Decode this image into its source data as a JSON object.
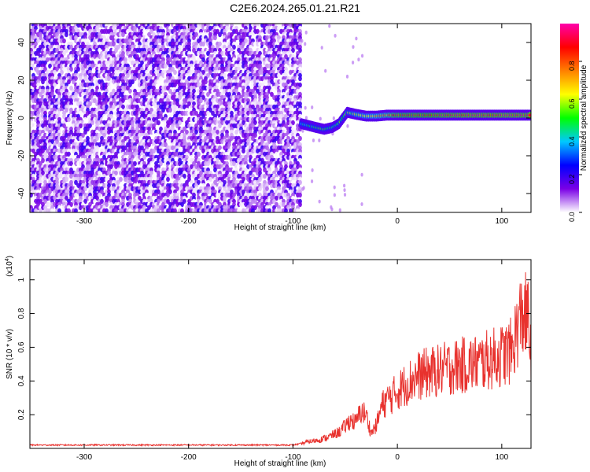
{
  "title": "C2E6.2024.265.01.21.R21",
  "chart_data": [
    {
      "type": "heatmap",
      "xlabel": "Height of straight line (km)",
      "ylabel": "Frequency (Hz)",
      "xlim": [
        -352,
        128
      ],
      "ylim": [
        -50,
        50
      ],
      "xticks": [
        -300,
        -200,
        -100,
        0,
        100
      ],
      "yticks": [
        -40,
        -20,
        0,
        20,
        40
      ],
      "noise_region": {
        "x": [
          -352,
          -93
        ],
        "y": [
          -50,
          50
        ],
        "amplitude": [
          0.0,
          0.2
        ]
      },
      "ridge": [
        {
          "x": -92,
          "y": -3,
          "amplitude": 0.4
        },
        {
          "x": -85,
          "y": -4,
          "amplitude": 0.45
        },
        {
          "x": -78,
          "y": -5,
          "amplitude": 0.5
        },
        {
          "x": -70,
          "y": -6,
          "amplitude": 0.5
        },
        {
          "x": -62,
          "y": -5,
          "amplitude": 0.45
        },
        {
          "x": -56,
          "y": -3,
          "amplitude": 0.5
        },
        {
          "x": -52,
          "y": 0,
          "amplitude": 0.5
        },
        {
          "x": -48,
          "y": 3,
          "amplitude": 0.55
        },
        {
          "x": -40,
          "y": 2,
          "amplitude": 0.6
        },
        {
          "x": -30,
          "y": 1,
          "amplitude": 0.65
        },
        {
          "x": -20,
          "y": 1,
          "amplitude": 0.7
        },
        {
          "x": -10,
          "y": 1.5,
          "amplitude": 0.75
        },
        {
          "x": 0,
          "y": 1.5,
          "amplitude": 0.85
        },
        {
          "x": 20,
          "y": 1.5,
          "amplitude": 0.9
        },
        {
          "x": 40,
          "y": 1.5,
          "amplitude": 0.92
        },
        {
          "x": 60,
          "y": 1.5,
          "amplitude": 0.95
        },
        {
          "x": 80,
          "y": 1.5,
          "amplitude": 0.95
        },
        {
          "x": 100,
          "y": 1.5,
          "amplitude": 0.95
        },
        {
          "x": 120,
          "y": 1.5,
          "amplitude": 0.95
        },
        {
          "x": 128,
          "y": 1.5,
          "amplitude": 0.95
        }
      ],
      "colorbar": {
        "label": "Normalized spectral amplitude",
        "range": [
          0,
          1
        ],
        "ticks": [
          "0.0",
          "0.2",
          "0.4",
          "0.6",
          "0.8"
        ],
        "colors": [
          "#ffffff",
          "#7a00e6",
          "#0000ff",
          "#00c8ff",
          "#00ff00",
          "#ffff00",
          "#ff8000",
          "#ff0000",
          "#ff00aa"
        ]
      }
    },
    {
      "type": "line",
      "xlabel": "Height of straight line (km)",
      "ylabel": "SNR (10 * v/v)",
      "yscale_label": "(x10",
      "yscale_exp": "4",
      "yscale_close": ")",
      "xlim": [
        -352,
        128
      ],
      "ylim": [
        0,
        1.12
      ],
      "xticks": [
        -300,
        -200,
        -100,
        0,
        100
      ],
      "yticks": [
        "0.2",
        "0.4",
        "0.6",
        "0.8",
        "1"
      ],
      "color": "#e8322e",
      "series": [
        {
          "x": [
            -352,
            -250,
            -150,
            -100,
            -95,
            -85,
            -75,
            -65,
            -55,
            -50,
            -45,
            -40,
            -35,
            -30,
            -25,
            -20,
            -15,
            -10,
            -5,
            0,
            10,
            20,
            30,
            40,
            50,
            60,
            70,
            80,
            90,
            100,
            110,
            115,
            120,
            125,
            128
          ],
          "y": [
            0.02,
            0.02,
            0.02,
            0.02,
            0.025,
            0.04,
            0.05,
            0.07,
            0.1,
            0.13,
            0.17,
            0.15,
            0.22,
            0.2,
            0.09,
            0.14,
            0.25,
            0.29,
            0.31,
            0.34,
            0.39,
            0.43,
            0.45,
            0.46,
            0.48,
            0.49,
            0.5,
            0.51,
            0.53,
            0.55,
            0.58,
            0.72,
            0.8,
            0.76,
            0.6
          ]
        }
      ]
    }
  ]
}
